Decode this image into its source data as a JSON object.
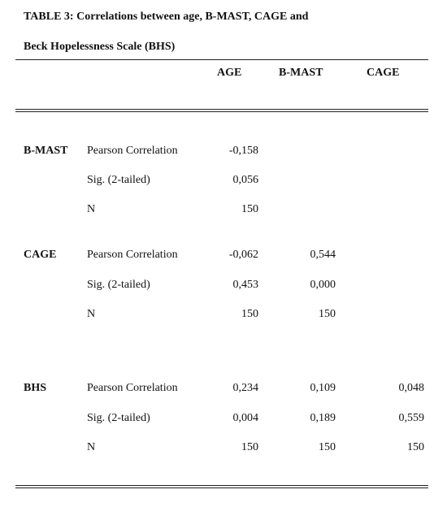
{
  "title_line1": "TABLE 3:  Correlations between age,  B-MAST,  CAGE  and",
  "title_line2": "Beck Hopelessness Scale (BHS)",
  "columns": [
    "AGE",
    "B-MAST",
    "CAGE"
  ],
  "groups": [
    {
      "name": "B-MAST",
      "rows": [
        {
          "label": "Pearson Correlation",
          "age": "-0,158",
          "bmast": "",
          "cage": ""
        },
        {
          "label": "Sig. (2-tailed)",
          "age": "0,056",
          "bmast": "",
          "cage": ""
        },
        {
          "label": "N",
          "age": "150",
          "bmast": "",
          "cage": ""
        }
      ]
    },
    {
      "name": "CAGE",
      "rows": [
        {
          "label": "Pearson Correlation",
          "age": "-0,062",
          "bmast": "0,544",
          "cage": ""
        },
        {
          "label": "Sig. (2-tailed)",
          "age": "0,453",
          "bmast": "0,000",
          "cage": ""
        },
        {
          "label": "N",
          "age": "150",
          "bmast": "150",
          "cage": ""
        }
      ]
    },
    {
      "name": "BHS",
      "rows": [
        {
          "label": "Pearson Correlation",
          "age": "0,234",
          "bmast": "0,109",
          "cage": "0,048"
        },
        {
          "label": "Sig. (2-tailed)",
          "age": "0,004",
          "bmast": "0,189",
          "cage": "0,559"
        },
        {
          "label": "N",
          "age": "150",
          "bmast": "150",
          "cage": "150"
        }
      ]
    }
  ]
}
